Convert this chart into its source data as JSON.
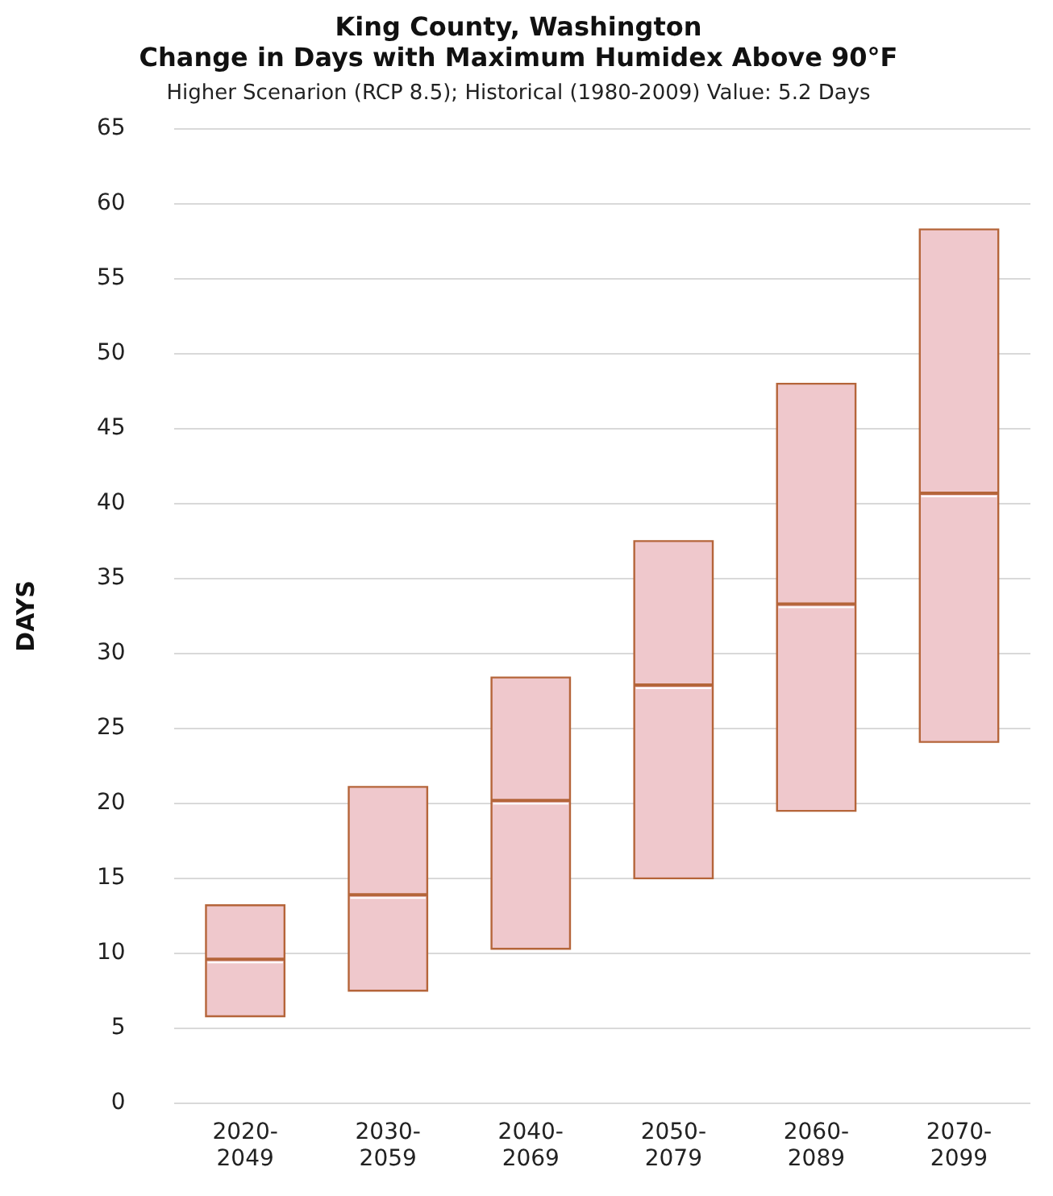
{
  "chart_data": {
    "type": "box",
    "title": "King County, Washington\nChange in Days with Maximum Humidex Above 90°F",
    "subtitle": "Higher Scenarion (RCP 8.5); Historical (1980-2009) Value: 5.2 Days",
    "ylabel": "DAYS",
    "categories": [
      "2020-2049",
      "2030-2059",
      "2040-2069",
      "2050-2079",
      "2060-2089",
      "2070-2099"
    ],
    "series": [
      {
        "color": "#efc8cc",
        "boxes": [
          {
            "low": 5.8,
            "q1": 5.8,
            "median": 9.6,
            "q3": 13.2,
            "high": 13.2
          },
          {
            "low": 7.5,
            "q1": 7.5,
            "median": 13.9,
            "q3": 21.1,
            "high": 21.1
          },
          {
            "low": 10.3,
            "q1": 10.3,
            "median": 20.2,
            "q3": 28.4,
            "high": 28.4
          },
          {
            "low": 15,
            "q1": 15,
            "median": 27.9,
            "q3": 37.5,
            "high": 37.5
          },
          {
            "low": 19.5,
            "q1": 19.5,
            "median": 33.3,
            "q3": 48,
            "high": 48
          },
          {
            "low": 24.1,
            "q1": 24.1,
            "median": 40.7,
            "q3": 58.3,
            "high": 58.3
          }
        ]
      }
    ],
    "ylim": [
      0,
      65
    ],
    "yticks": [
      0,
      5,
      10,
      15,
      20,
      25,
      30,
      35,
      40,
      45,
      50,
      55,
      60,
      65
    ],
    "grid": "y"
  }
}
